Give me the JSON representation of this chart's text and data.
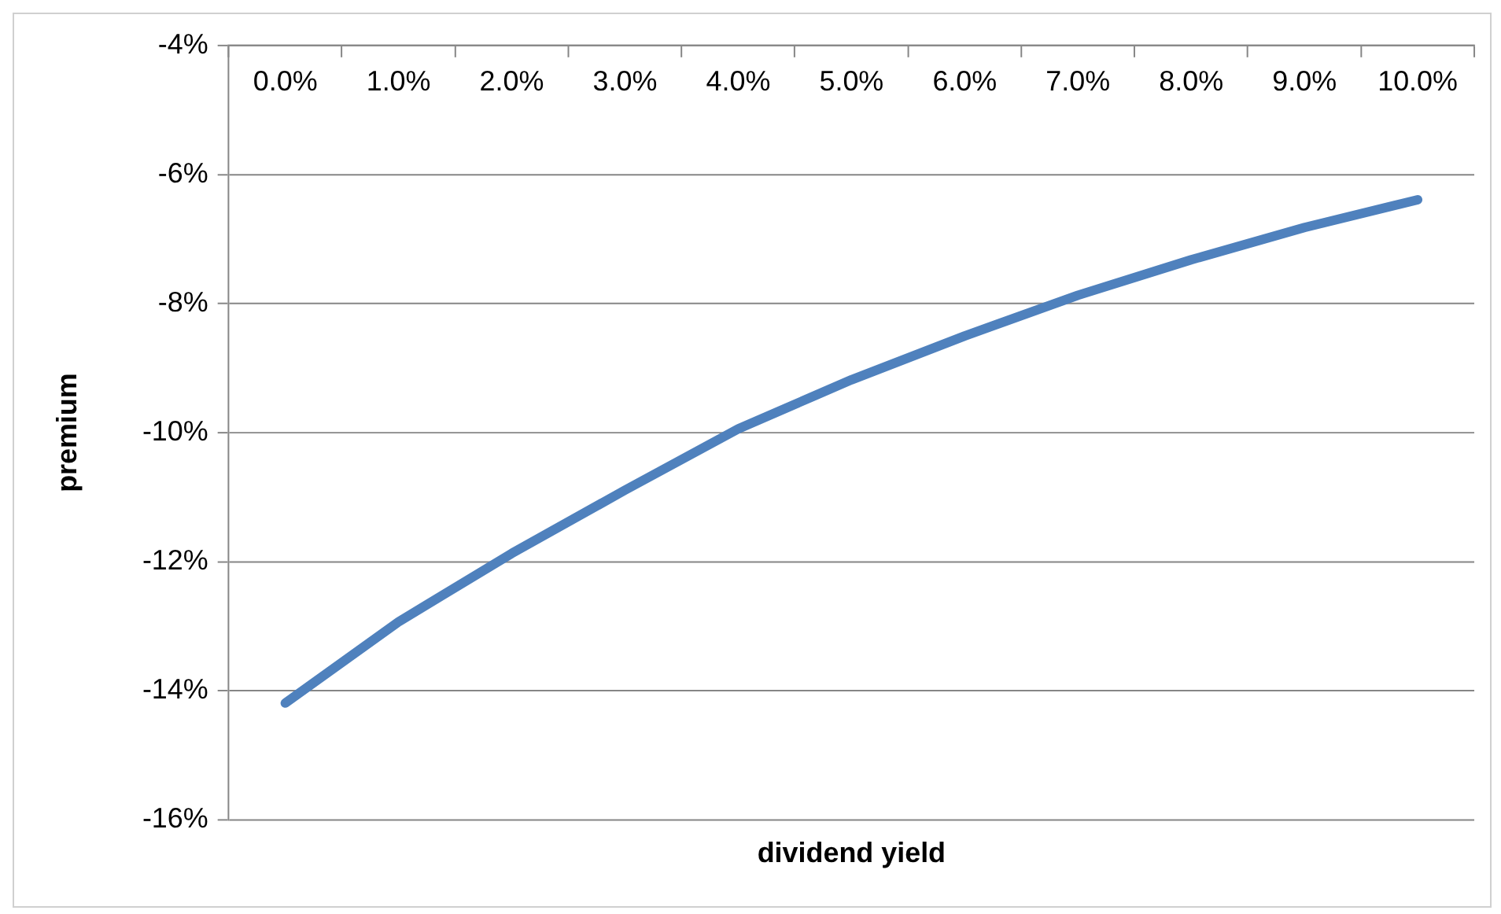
{
  "chart_data": {
    "type": "line",
    "xlabel": "dividend yield",
    "ylabel": "premium",
    "categories": [
      "0.0%",
      "1.0%",
      "2.0%",
      "3.0%",
      "4.0%",
      "5.0%",
      "6.0%",
      "7.0%",
      "8.0%",
      "9.0%",
      "10.0%"
    ],
    "series": [
      {
        "color": "#4f81bd",
        "values": [
          -14.19,
          -12.93,
          -11.87,
          -10.89,
          -9.94,
          -9.18,
          -8.5,
          -7.87,
          -7.32,
          -6.82,
          -6.39
        ]
      }
    ],
    "ylim": [
      -16,
      -4
    ],
    "yticks": [
      {
        "value": -16,
        "label": "-16%"
      },
      {
        "value": -14,
        "label": "-14%"
      },
      {
        "value": -12,
        "label": "-12%"
      },
      {
        "value": -10,
        "label": "-10%"
      },
      {
        "value": -8,
        "label": "-8%"
      },
      {
        "value": -6,
        "label": "-6%"
      },
      {
        "value": -4,
        "label": "-4%"
      }
    ],
    "grid": "y",
    "legend": false,
    "marker": "none",
    "line_style": "solid"
  }
}
